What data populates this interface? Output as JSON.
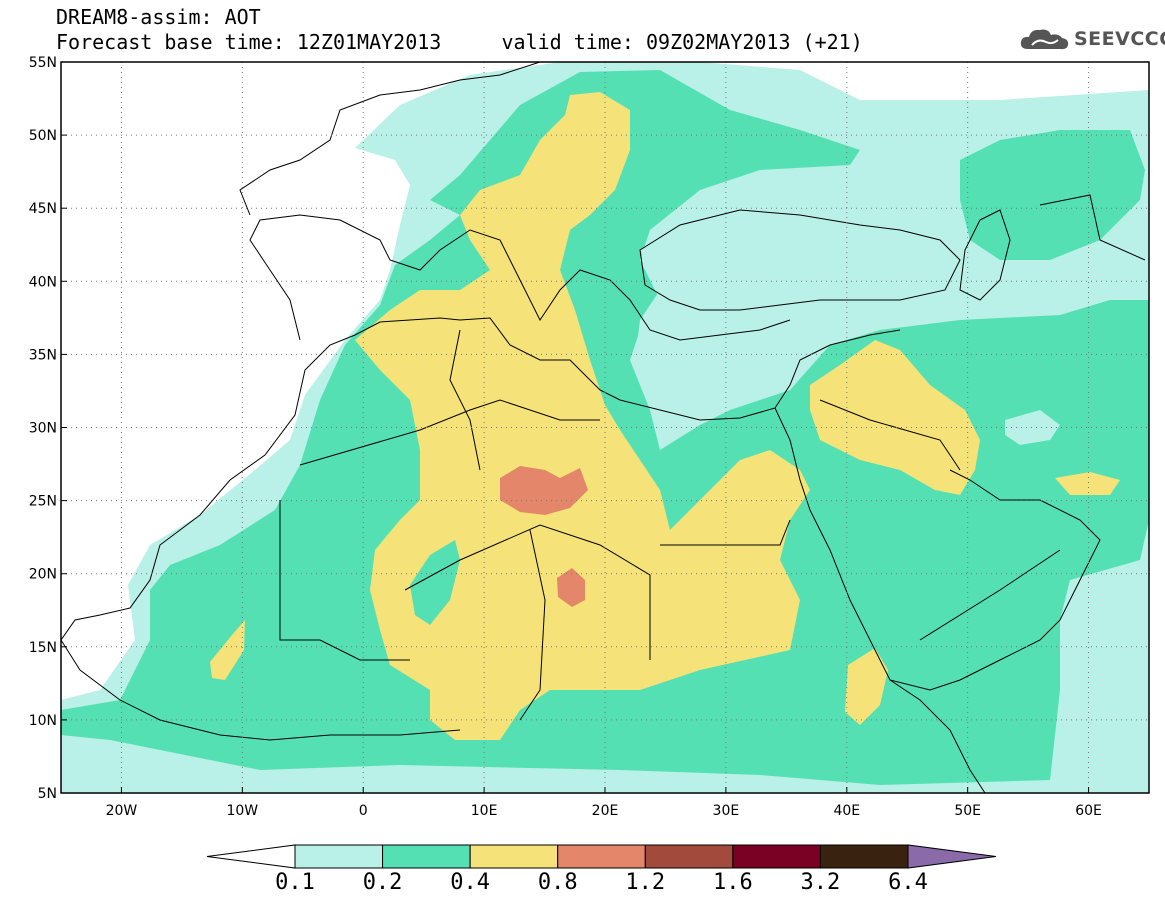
{
  "header": {
    "line1": "DREAM8-assim: AOT",
    "line2": "Forecast base time: 12Z01MAY2013     valid time: 09Z02MAY2013 (+21)",
    "brand": "SEEVCCC"
  },
  "map": {
    "lon_range": [
      -25,
      65
    ],
    "lat_range": [
      5,
      55
    ],
    "lat_ticks": [
      {
        "value": 55,
        "label": "55N"
      },
      {
        "value": 50,
        "label": "50N"
      },
      {
        "value": 45,
        "label": "45N"
      },
      {
        "value": 40,
        "label": "40N"
      },
      {
        "value": 35,
        "label": "35N"
      },
      {
        "value": 30,
        "label": "30N"
      },
      {
        "value": 25,
        "label": "25N"
      },
      {
        "value": 20,
        "label": "20N"
      },
      {
        "value": 15,
        "label": "15N"
      },
      {
        "value": 10,
        "label": "10N"
      },
      {
        "value": 5,
        "label": "5N"
      }
    ],
    "lon_ticks": [
      {
        "value": -20,
        "label": "20W"
      },
      {
        "value": -10,
        "label": "10W"
      },
      {
        "value": 0,
        "label": "0"
      },
      {
        "value": 10,
        "label": "10E"
      },
      {
        "value": 20,
        "label": "20E"
      },
      {
        "value": 30,
        "label": "30E"
      },
      {
        "value": 40,
        "label": "40E"
      },
      {
        "value": 50,
        "label": "50E"
      },
      {
        "value": 60,
        "label": "60E"
      }
    ],
    "grid": true,
    "field": "AOT"
  },
  "colorbar": {
    "colors": [
      "#b9f0e8",
      "#55e0b4",
      "#f5e278",
      "#e3866a",
      "#a24a3c",
      "#7a0024",
      "#3a2210"
    ],
    "labels": [
      "0.1",
      "0.2",
      "0.4",
      "0.8",
      "1.2",
      "1.6",
      "3.2",
      "6.4"
    ],
    "under_color": "#ffffff",
    "over_color": "#8a6aa8"
  }
}
